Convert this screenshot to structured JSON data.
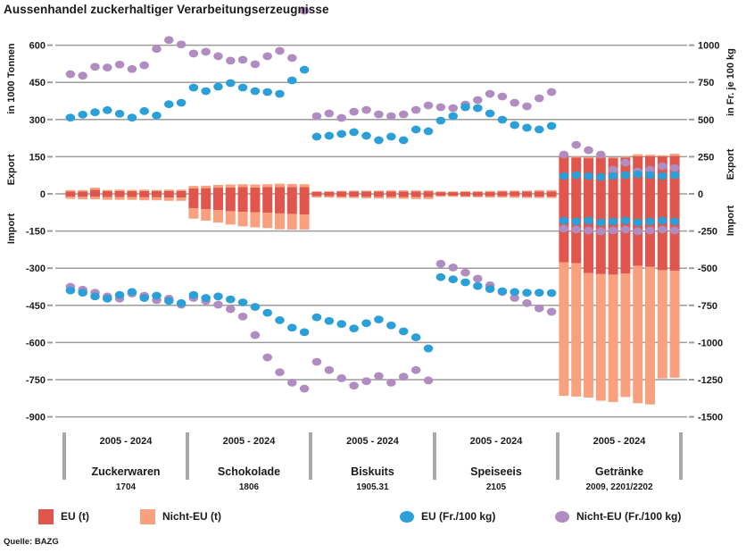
{
  "title": "Aussenhandel zuckerhaltiger Verarbeitungserzeugnisse",
  "source": "Quelle: BAZG",
  "colors": {
    "eu_bar": "#e0564c",
    "noneu_bar": "#f9a17e",
    "eu_dot": "#2b9fd8",
    "noneu_dot": "#b18cc1",
    "grid": "#9b9b9b",
    "group_tick": "#a8a8a8",
    "text": "#1a1a1a"
  },
  "left_axis": {
    "title": "in 1000 Tonnen",
    "export_label": "Export",
    "import_label": "Import",
    "ticks": [
      600,
      450,
      300,
      150,
      0,
      -150,
      -300,
      -450,
      -600,
      -750,
      -900
    ]
  },
  "right_axis": {
    "title": "in Fr. je 100 kg",
    "export_label": "Export",
    "import_label": "Import",
    "ticks": [
      1000,
      750,
      500,
      250,
      0,
      -250,
      -500,
      -750,
      -1000,
      -1250,
      -1500
    ]
  },
  "legend": {
    "items": [
      {
        "label": "EU (t)",
        "swatch": "square",
        "color_key": "eu_bar"
      },
      {
        "label": "Nicht-EU (t)",
        "swatch": "square",
        "color_key": "noneu_bar"
      },
      {
        "label": "EU (Fr./100 kg)",
        "swatch": "dot",
        "color_key": "eu_dot"
      },
      {
        "label": "Nicht-EU (Fr./100 kg)",
        "swatch": "dot",
        "color_key": "noneu_dot"
      }
    ]
  },
  "chart_data": {
    "type": "bar",
    "subtype": "grouped stacked bars (volumes, 1000 t) with price dots (Fr./100 kg); exports above zero, imports below",
    "period_label": "2005 - 2024",
    "periods_note": "10 unlabeled periods per product group spanning 2005-2024",
    "bar_unit": "1000 t",
    "dot_unit": "Fr. je 100 kg",
    "left_axis_range": [
      -900,
      600
    ],
    "right_axis_range": [
      -1500,
      1000
    ],
    "grid": true,
    "legend_position": "bottom",
    "groups": [
      {
        "name": "Zuckerwaren",
        "tariff": "1704",
        "bars": {
          "export_eu": [
            10,
            10,
            17,
            11,
            12,
            11,
            12,
            11,
            12,
            12
          ],
          "export_noneu": [
            5,
            5,
            8,
            5,
            5,
            5,
            5,
            5,
            5,
            5
          ],
          "import_eu": [
            -11,
            -12,
            -12,
            -13,
            -13,
            -13,
            -14,
            -14,
            -15,
            -15
          ],
          "import_noneu": [
            -9,
            -10,
            -10,
            -11,
            -11,
            -11,
            -12,
            -12,
            -13,
            -13
          ]
        },
        "prices": {
          "export_eu": [
            513,
            533,
            549,
            563,
            539,
            513,
            557,
            527,
            603,
            613
          ],
          "export_noneu": [
            805,
            795,
            855,
            850,
            870,
            840,
            865,
            975,
            1035,
            1005
          ],
          "import_eu": [
            -650,
            -665,
            -690,
            -705,
            -680,
            -660,
            -700,
            -685,
            -720,
            -735
          ],
          "import_noneu": [
            -625,
            -645,
            -665,
            -690,
            -705,
            -670,
            -685,
            -715,
            -705,
            -745
          ]
        }
      },
      {
        "name": "Schokolade",
        "tariff": "1806",
        "bars": {
          "export_eu": [
            22,
            23,
            25,
            26,
            27,
            26,
            27,
            28,
            28,
            27
          ],
          "export_noneu": [
            10,
            10,
            11,
            12,
            12,
            12,
            12,
            13,
            12,
            12
          ],
          "import_eu": [
            -58,
            -62,
            -66,
            -70,
            -73,
            -75,
            -76,
            -79,
            -81,
            -83
          ],
          "import_noneu": [
            -42,
            -46,
            -50,
            -54,
            -58,
            -60,
            -62,
            -64,
            -63,
            -61
          ]
        },
        "prices": {
          "export_eu": [
            715,
            691,
            721,
            745,
            715,
            691,
            685,
            673,
            763,
            835
          ],
          "export_noneu": [
            944,
            956,
            926,
            896,
            902,
            872,
            926,
            962,
            914,
            1232
          ],
          "import_eu": [
            -680,
            -700,
            -690,
            -710,
            -730,
            -760,
            -800,
            -850,
            -900,
            -930
          ],
          "import_noneu": [
            -700,
            -720,
            -745,
            -775,
            -825,
            -950,
            -1100,
            -1200,
            -1270,
            -1310
          ]
        }
      },
      {
        "name": "Biskuits",
        "tariff": "1905.31",
        "bars": {
          "export_eu": [
            8,
            8,
            9,
            9,
            9,
            9,
            10,
            10,
            10,
            10
          ],
          "export_noneu": [
            3,
            3,
            3,
            4,
            4,
            4,
            4,
            4,
            4,
            4
          ],
          "import_eu": [
            -10,
            -10,
            -11,
            -11,
            -12,
            -12,
            -12,
            -13,
            -13,
            -13
          ],
          "import_noneu": [
            -5,
            -5,
            -6,
            -6,
            -6,
            -7,
            -7,
            -7,
            -8,
            -8
          ]
        },
        "prices": {
          "export_eu": [
            385,
            391,
            403,
            415,
            391,
            361,
            385,
            361,
            433,
            421
          ],
          "export_noneu": [
            523,
            541,
            511,
            553,
            565,
            535,
            523,
            535,
            565,
            595
          ],
          "import_eu": [
            -830,
            -855,
            -875,
            -905,
            -870,
            -845,
            -885,
            -925,
            -965,
            -1040
          ],
          "import_noneu": [
            -1130,
            -1185,
            -1240,
            -1290,
            -1260,
            -1225,
            -1270,
            -1230,
            -1185,
            -1255
          ]
        }
      },
      {
        "name": "Speiseeis",
        "tariff": "2105",
        "bars": {
          "export_eu": [
            7,
            7,
            8,
            8,
            8,
            9,
            9,
            9,
            10,
            10
          ],
          "export_noneu": [
            3,
            3,
            3,
            3,
            4,
            4,
            4,
            4,
            5,
            5
          ],
          "import_eu": [
            -8,
            -8,
            -9,
            -9,
            -10,
            -10,
            -10,
            -11,
            -11,
            -11
          ],
          "import_noneu": [
            -4,
            -4,
            -4,
            -5,
            -5,
            -5,
            -6,
            -6,
            -6,
            -6
          ]
        },
        "prices": {
          "export_eu": [
            493,
            523,
            583,
            577,
            541,
            499,
            463,
            445,
            433,
            457
          ],
          "export_noneu": [
            583,
            577,
            601,
            631,
            673,
            655,
            613,
            589,
            643,
            685
          ],
          "import_eu": [
            -560,
            -575,
            -595,
            -620,
            -640,
            -655,
            -660,
            -665,
            -665,
            -667
          ],
          "import_noneu": [
            -470,
            -495,
            -530,
            -570,
            -615,
            -660,
            -700,
            -735,
            -770,
            -793
          ]
        }
      },
      {
        "name": "Getränke",
        "tariff": "2009, 2201/2202",
        "bars": {
          "export_eu": [
            151,
            146,
            144,
            146,
            144,
            146,
            152,
            152,
            151,
            154
          ],
          "export_noneu": [
            4,
            4,
            4,
            4,
            4,
            4,
            8,
            6,
            5,
            8
          ],
          "import_eu": [
            -277,
            -280,
            -320,
            -324,
            -326,
            -322,
            -290,
            -295,
            -308,
            -310
          ],
          "import_noneu": [
            -538,
            -538,
            -502,
            -511,
            -514,
            -498,
            -555,
            -555,
            -437,
            -432
          ]
        },
        "prices": {
          "export_eu": [
            120,
            126,
            120,
            114,
            120,
            126,
            132,
            126,
            120,
            126
          ],
          "export_noneu": [
            264,
            330,
            294,
            264,
            162,
            210,
            150,
            162,
            186,
            174
          ],
          "import_eu": [
            -180,
            -186,
            -180,
            -192,
            -186,
            -180,
            -192,
            -186,
            -180,
            -186
          ],
          "import_noneu": [
            -234,
            -240,
            -246,
            -252,
            -246,
            -240,
            -252,
            -246,
            -240,
            -246
          ]
        }
      }
    ]
  }
}
